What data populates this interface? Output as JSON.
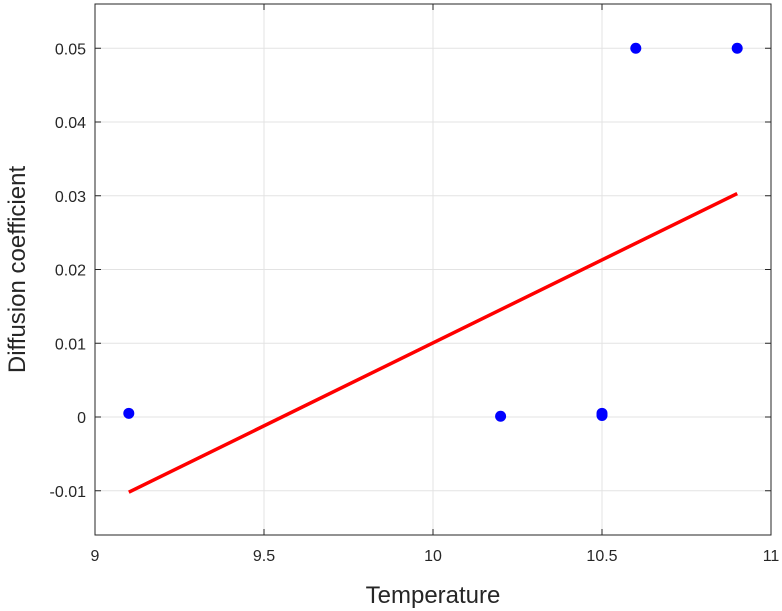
{
  "chart_data": {
    "type": "scatter",
    "title": "",
    "xlabel": "Temperature",
    "ylabel": "Diffusion coefficient",
    "xlim": [
      9,
      11
    ],
    "ylim": [
      -0.016,
      0.056
    ],
    "xticks": [
      9,
      9.5,
      10,
      10.5,
      11
    ],
    "xtick_labels": [
      "9",
      "9.5",
      "10",
      "10.5",
      "11"
    ],
    "yticks": [
      -0.01,
      0,
      0.01,
      0.02,
      0.03,
      0.04,
      0.05
    ],
    "ytick_labels": [
      "-0.01",
      "0",
      "0.01",
      "0.02",
      "0.03",
      "0.04",
      "0.05"
    ],
    "grid": true,
    "legend": "none",
    "series": [
      {
        "kind": "points",
        "color": "#0000ff",
        "points": [
          {
            "x": 9.1,
            "y": 0.0005
          },
          {
            "x": 10.2,
            "y": 0.0001
          },
          {
            "x": 10.5,
            "y": 0.0002
          },
          {
            "x": 10.5,
            "y": 0.0005
          },
          {
            "x": 10.6,
            "y": 0.05
          },
          {
            "x": 10.9,
            "y": 0.05
          }
        ]
      },
      {
        "kind": "fit-line",
        "color": "#ff0000",
        "points": [
          {
            "x": 9.1,
            "y": -0.0102
          },
          {
            "x": 10.9,
            "y": 0.0303
          }
        ]
      }
    ]
  }
}
